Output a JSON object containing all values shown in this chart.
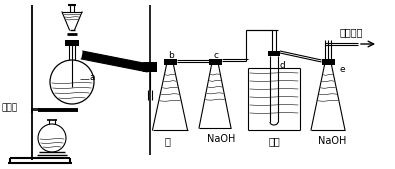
{
  "bg_color": "#ffffff",
  "line_color": "#000000",
  "labels": {
    "suici": "碎瓷片",
    "a": "a",
    "b": "b",
    "c": "c",
    "d": "d",
    "e": "e",
    "water": "水",
    "naoh1": "NaOH",
    "cold_water": "冷水",
    "naoh2": "NaOH",
    "exhaust": "排出室外"
  },
  "figsize": [
    3.95,
    1.69
  ],
  "dpi": 100
}
